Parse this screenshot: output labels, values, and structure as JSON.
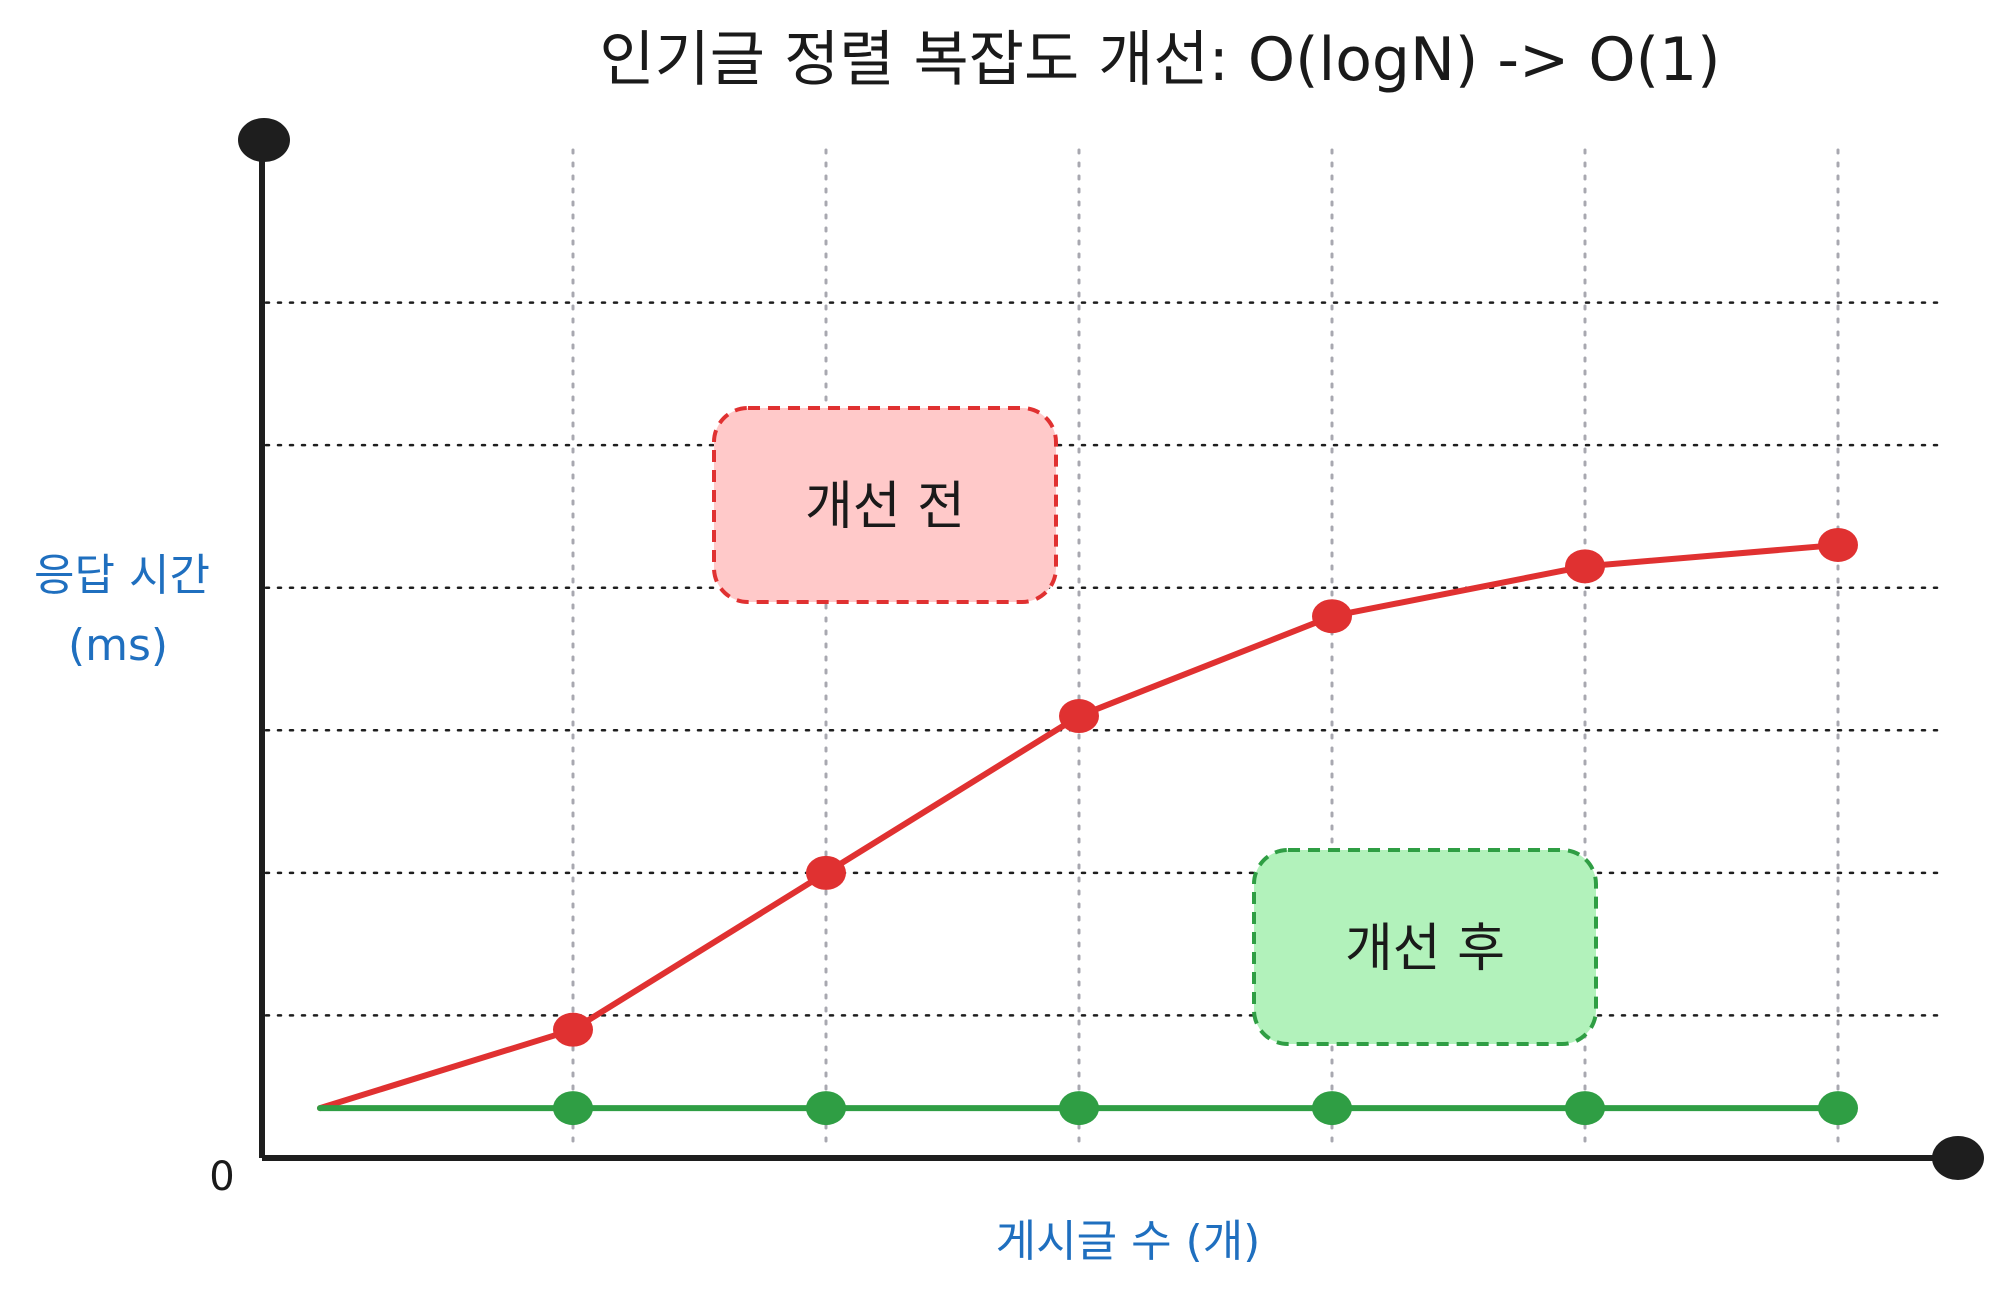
{
  "chart_data": {
    "type": "line",
    "title": "인기글 정렬 복잡도 개선: O(logN) -> O(1)",
    "xlabel": "게시글 수 (개)",
    "ylabel_line1": "응답 시간",
    "ylabel_line2": "(ms)",
    "origin_label": "0",
    "xlim": [
      0,
      7
    ],
    "ylim": [
      0,
      7
    ],
    "grid": true,
    "legend": "none",
    "x": [
      0,
      1,
      2,
      3,
      4,
      5,
      6
    ],
    "series": [
      {
        "name": "개선 전",
        "color": "#e03131",
        "values": [
          0.35,
          0.9,
          2.0,
          3.1,
          3.8,
          4.15,
          4.3
        ]
      },
      {
        "name": "개선 후",
        "color": "#2f9e44",
        "values": [
          0.35,
          0.35,
          0.35,
          0.35,
          0.35,
          0.35,
          0.35
        ]
      }
    ],
    "annotations": [
      {
        "text": "개선 전",
        "fill": "#ffc9c9",
        "stroke": "#e03131"
      },
      {
        "text": "개선 후",
        "fill": "#b2f2bb",
        "stroke": "#2f9e44"
      }
    ]
  }
}
